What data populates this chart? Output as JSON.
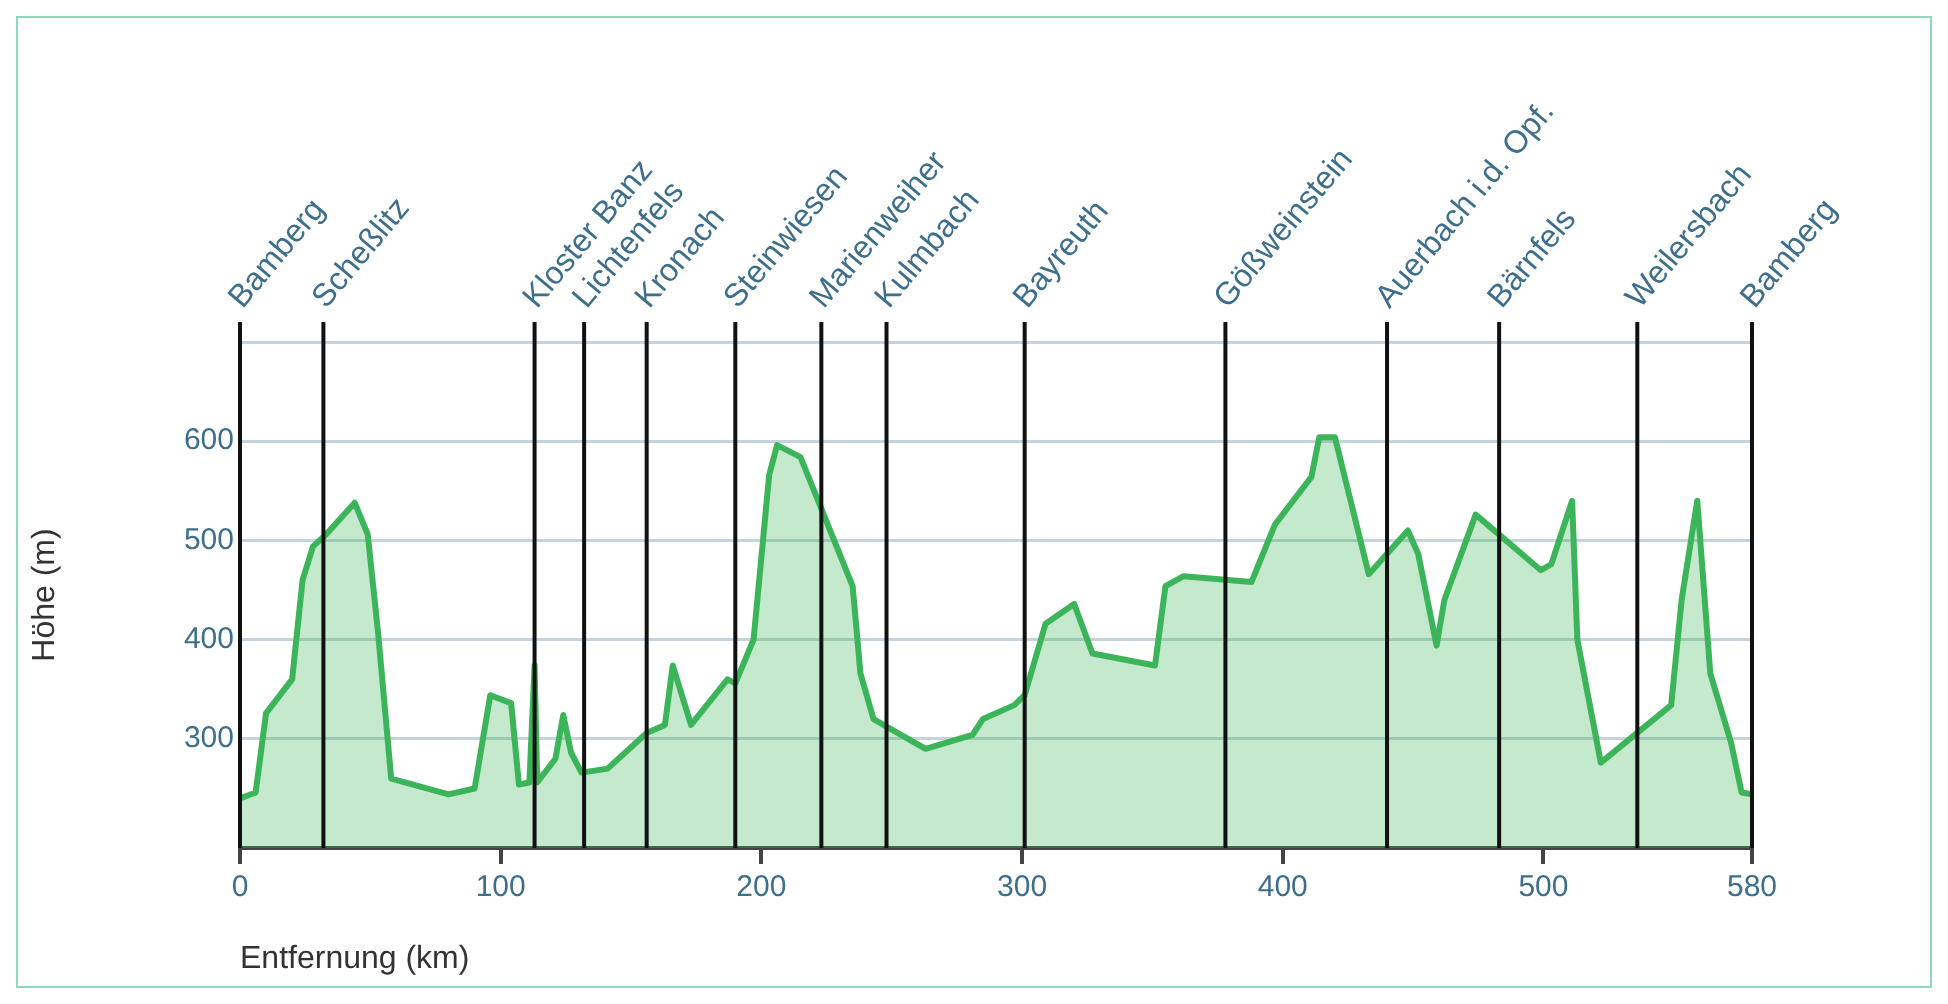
{
  "chart_data": {
    "type": "area",
    "xlabel": "Entfernung (km)",
    "ylabel": "Höhe (m)",
    "xlim": [
      0,
      580
    ],
    "xticks": [
      0,
      100,
      200,
      300,
      400,
      500,
      580
    ],
    "ylim": [
      190,
      700
    ],
    "yticks": [
      300,
      400,
      500,
      600,
      {
        "value": 700,
        "label": null
      }
    ],
    "grid": "y",
    "legend": false,
    "marker": "none",
    "line_style": "solid",
    "series": [
      {
        "color": "#3cb55a",
        "x": [
          0,
          6,
          10,
          20,
          24,
          28,
          33,
          44,
          49,
          53,
          58,
          80,
          90,
          96,
          104,
          107,
          111,
          113,
          114,
          121,
          124,
          127,
          131,
          141,
          156,
          163,
          166,
          173,
          187,
          190,
          197,
          203,
          206,
          215,
          235,
          238,
          243,
          263,
          281,
          285,
          297,
          301,
          309,
          320,
          327,
          351,
          355,
          362,
          388,
          397,
          411,
          414,
          420,
          433,
          448,
          452,
          459,
          462,
          474,
          499,
          503,
          511,
          513,
          522,
          549,
          553,
          559,
          564,
          572,
          576,
          580
        ],
        "values": [
          240,
          246,
          326,
          360,
          460,
          494,
          506,
          538,
          506,
          406,
          260,
          244,
          250,
          344,
          336,
          254,
          256,
          374,
          256,
          280,
          324,
          286,
          266,
          270,
          306,
          314,
          374,
          314,
          360,
          356,
          400,
          566,
          596,
          584,
          454,
          366,
          320,
          290,
          304,
          320,
          334,
          344,
          416,
          436,
          386,
          374,
          454,
          464,
          458,
          516,
          564,
          604,
          604,
          466,
          510,
          486,
          394,
          440,
          526,
          470,
          476,
          540,
          400,
          276,
          334,
          440,
          540,
          366,
          296,
          246,
          244
        ]
      }
    ],
    "ref_lines": [
      {
        "axis": "x",
        "value": 0,
        "label": "Bamberg"
      },
      {
        "axis": "x",
        "value": 32,
        "label": "Scheßlitz"
      },
      {
        "axis": "x",
        "value": 113,
        "label": "Kloster Banz"
      },
      {
        "axis": "x",
        "value": 132,
        "label": "Lichtenfels"
      },
      {
        "axis": "x",
        "value": 156,
        "label": "Kronach"
      },
      {
        "axis": "x",
        "value": 190,
        "label": "Steinwiesen"
      },
      {
        "axis": "x",
        "value": 223,
        "label": "Marienweiher"
      },
      {
        "axis": "x",
        "value": 248,
        "label": "Kulmbach"
      },
      {
        "axis": "x",
        "value": 301,
        "label": "Bayreuth"
      },
      {
        "axis": "x",
        "value": 378,
        "label": "Gößweinstein"
      },
      {
        "axis": "x",
        "value": 440,
        "label": "Auerbach i.d. Opf."
      },
      {
        "axis": "x",
        "value": 483,
        "label": "Bärnfels"
      },
      {
        "axis": "x",
        "value": 536,
        "label": "Weilersbach"
      },
      {
        "axis": "x",
        "value": 580,
        "label": "Bamberg"
      }
    ]
  }
}
